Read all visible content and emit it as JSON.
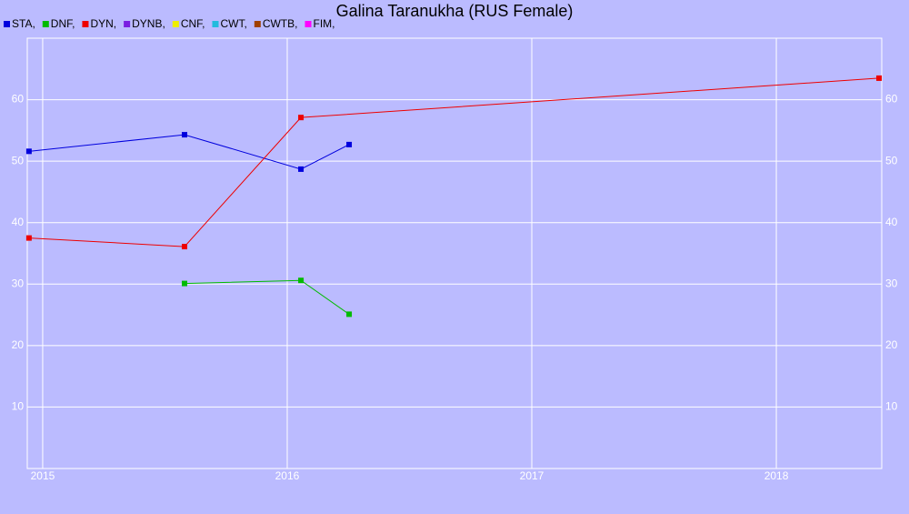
{
  "chart_data": {
    "type": "line",
    "title": "Galina Taranukha (RUS Female)",
    "xlim": [
      2014.937,
      2018.431
    ],
    "xticks": [
      2015,
      2016,
      2017,
      2018
    ],
    "ylim": [
      0,
      70
    ],
    "yticks": [
      10,
      20,
      30,
      40,
      50,
      60
    ],
    "grid": true,
    "series": [
      {
        "name": "STA,",
        "color": "#0000dd",
        "x": [
          2014.944,
          2015.58,
          2016.056,
          2016.253
        ],
        "values": [
          51.6,
          54.3,
          48.7,
          52.7
        ]
      },
      {
        "name": "DNF,",
        "color": "#00bb00",
        "x": [
          2015.58,
          2016.056,
          2016.253
        ],
        "values": [
          30.1,
          30.6,
          25.1
        ]
      },
      {
        "name": "DYN,",
        "color": "#ee0000",
        "x": [
          2014.944,
          2015.58,
          2016.056,
          2018.42
        ],
        "values": [
          37.5,
          36.1,
          57.1,
          63.5
        ]
      },
      {
        "name": "DYNB,",
        "color": "#7a1fe0",
        "x": [],
        "values": []
      },
      {
        "name": "CNF,",
        "color": "#eeee00",
        "x": [],
        "values": []
      },
      {
        "name": "CWT,",
        "color": "#22bbdd",
        "x": [],
        "values": []
      },
      {
        "name": "CWTB,",
        "color": "#a04000",
        "x": [],
        "values": []
      },
      {
        "name": "FIM,",
        "color": "#ff00ff",
        "x": [],
        "values": []
      }
    ]
  }
}
